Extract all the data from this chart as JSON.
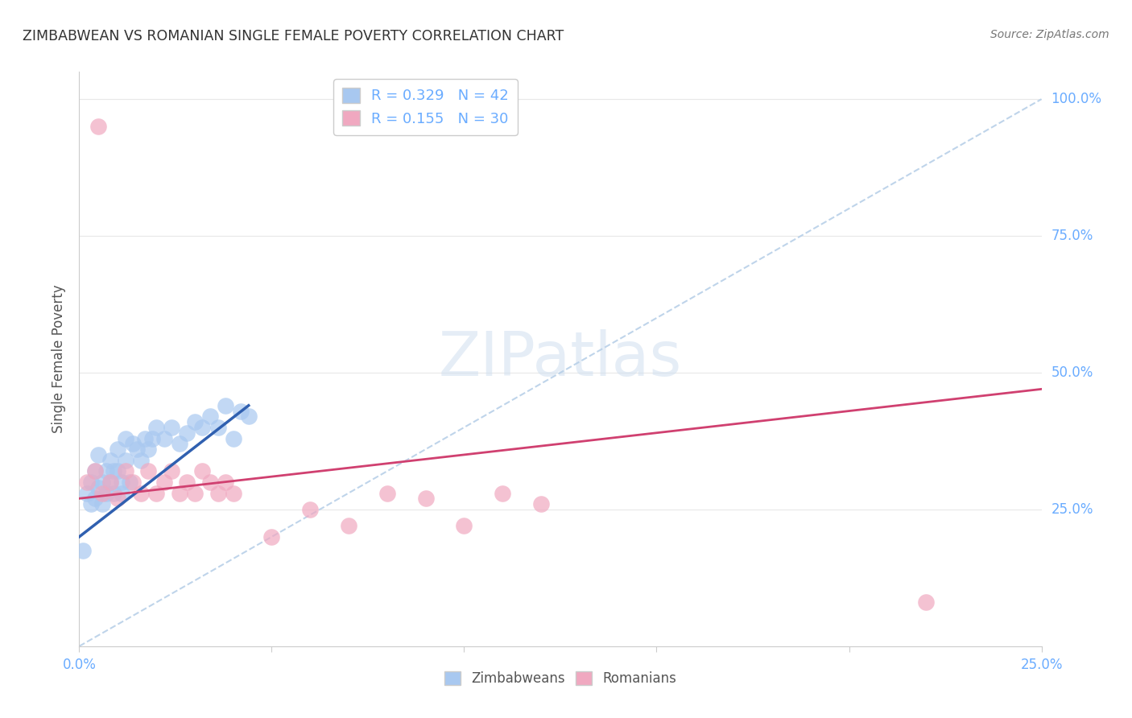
{
  "title": "ZIMBABWEAN VS ROMANIAN SINGLE FEMALE POVERTY CORRELATION CHART",
  "source": "Source: ZipAtlas.com",
  "ylabel": "Single Female Poverty",
  "xlim": [
    0.0,
    0.25
  ],
  "ylim": [
    0.0,
    1.05
  ],
  "xticks": [
    0.0,
    0.05,
    0.1,
    0.15,
    0.2,
    0.25
  ],
  "yticks": [
    0.0,
    0.25,
    0.5,
    0.75,
    1.0
  ],
  "zimbabwean_color": "#a8c8f0",
  "romanian_color": "#f0a8c0",
  "trend_zim_color": "#3060b0",
  "trend_rom_color": "#d04070",
  "diagonal_color": "#b8d0e8",
  "background_color": "#ffffff",
  "grid_color": "#e8e8e8",
  "tick_color": "#6aacff",
  "R_zim": 0.329,
  "N_zim": 42,
  "R_rom": 0.155,
  "N_rom": 30,
  "zim_x": [
    0.001,
    0.002,
    0.003,
    0.003,
    0.004,
    0.004,
    0.005,
    0.005,
    0.006,
    0.006,
    0.007,
    0.007,
    0.008,
    0.008,
    0.009,
    0.009,
    0.01,
    0.01,
    0.011,
    0.011,
    0.012,
    0.012,
    0.013,
    0.014,
    0.015,
    0.016,
    0.017,
    0.018,
    0.019,
    0.02,
    0.022,
    0.024,
    0.026,
    0.028,
    0.03,
    0.032,
    0.034,
    0.036,
    0.038,
    0.04,
    0.042,
    0.044
  ],
  "zim_y": [
    0.175,
    0.28,
    0.3,
    0.26,
    0.32,
    0.27,
    0.35,
    0.29,
    0.3,
    0.26,
    0.32,
    0.28,
    0.34,
    0.3,
    0.32,
    0.28,
    0.36,
    0.32,
    0.3,
    0.28,
    0.38,
    0.34,
    0.3,
    0.37,
    0.36,
    0.34,
    0.38,
    0.36,
    0.38,
    0.4,
    0.38,
    0.4,
    0.37,
    0.39,
    0.41,
    0.4,
    0.42,
    0.4,
    0.44,
    0.38,
    0.43,
    0.42
  ],
  "rom_x": [
    0.002,
    0.004,
    0.006,
    0.008,
    0.01,
    0.012,
    0.014,
    0.016,
    0.018,
    0.02,
    0.022,
    0.024,
    0.026,
    0.028,
    0.03,
    0.032,
    0.034,
    0.036,
    0.038,
    0.04,
    0.05,
    0.06,
    0.07,
    0.08,
    0.09,
    0.1,
    0.11,
    0.12,
    0.22,
    0.005
  ],
  "rom_y": [
    0.3,
    0.32,
    0.28,
    0.3,
    0.27,
    0.32,
    0.3,
    0.28,
    0.32,
    0.28,
    0.3,
    0.32,
    0.28,
    0.3,
    0.28,
    0.32,
    0.3,
    0.28,
    0.3,
    0.28,
    0.2,
    0.25,
    0.22,
    0.28,
    0.27,
    0.22,
    0.28,
    0.26,
    0.08,
    0.95
  ],
  "zim_trend_x": [
    0.0,
    0.044
  ],
  "zim_trend_y": [
    0.2,
    0.44
  ],
  "rom_trend_x": [
    0.0,
    0.25
  ],
  "rom_trend_y": [
    0.27,
    0.47
  ]
}
